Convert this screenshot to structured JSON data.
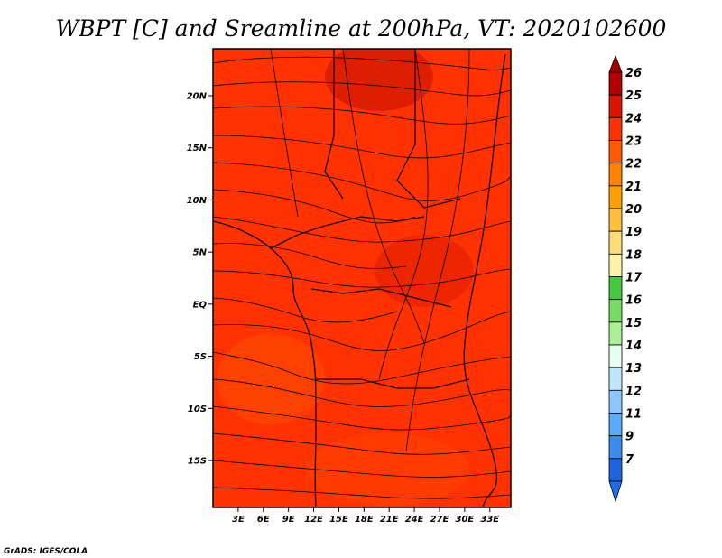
{
  "title": "WBPT [C] and Sreamline at 200hPa, VT: 2020102600",
  "credit": "GrADS: IGES/COLA",
  "map": {
    "lat_labels": [
      "20N",
      "15N",
      "10N",
      "5N",
      "EQ",
      "5S",
      "10S",
      "15S"
    ],
    "lon_labels": [
      "3E",
      "6E",
      "9E",
      "12E",
      "15E",
      "18E",
      "21E",
      "24E",
      "27E",
      "30E",
      "33E"
    ],
    "lat_values": [
      20,
      15,
      10,
      5,
      0,
      -5,
      -10,
      -15
    ],
    "lon_values": [
      3,
      6,
      9,
      12,
      15,
      18,
      21,
      24,
      27,
      30,
      33
    ],
    "lat_range": [
      -19.5,
      24.5
    ],
    "lon_range": [
      0,
      35.5
    ],
    "field": "WBPT",
    "field_units": "C",
    "level": "200hPa",
    "valid_time": "2020102600",
    "dominant_field_color": "#ff3200",
    "warm_patch_color": "#c81000",
    "cool_patch_color": "#ff5000"
  },
  "colorbar": {
    "labels": [
      "26",
      "25",
      "24",
      "23",
      "22",
      "21",
      "20",
      "19",
      "18",
      "17",
      "16",
      "15",
      "14",
      "13",
      "12",
      "11",
      "9",
      "7"
    ],
    "colors": [
      "#b40000",
      "#dc1400",
      "#ff3200",
      "#ff5a00",
      "#ff8200",
      "#ffa000",
      "#ffbe3c",
      "#ffdc78",
      "#fff0aa",
      "#46c83c",
      "#78dc64",
      "#aaf096",
      "#e6fff0",
      "#bee6ff",
      "#8cc8ff",
      "#5aaaff",
      "#3c8cf0",
      "#1e64dc"
    ],
    "top_arrow_color": "#a00000",
    "bottom_arrow_color": "#1e6eeb"
  }
}
